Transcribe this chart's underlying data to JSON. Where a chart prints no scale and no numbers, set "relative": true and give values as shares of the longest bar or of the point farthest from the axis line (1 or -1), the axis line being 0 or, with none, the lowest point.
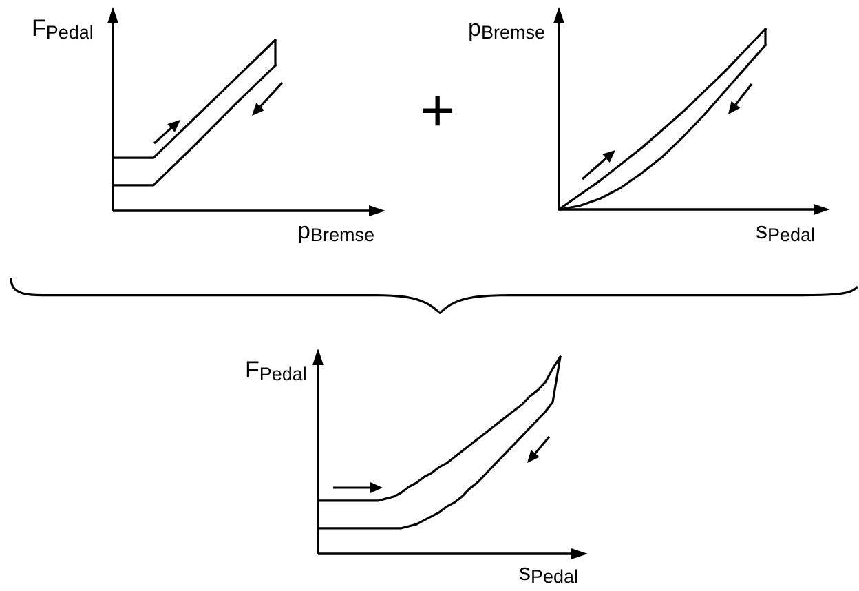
{
  "chart_data": [
    {
      "type": "line",
      "xlabel": "p$_{Bremse}$",
      "ylabel": "F$_{Pedal}$",
      "relative": true,
      "categories": [
        null,
        null,
        null,
        null,
        null
      ],
      "series": [
        {
          "type": "line",
          "color": "#000000",
          "values": [
            0.31,
            0.31,
            0.54,
            0.77,
            1
          ]
        },
        {
          "type": "line",
          "color": "#000000",
          "values": [
            0.15,
            0.15,
            0.38,
            0.62,
            0.85
          ]
        }
      ]
    },
    {
      "type": "other",
      "annotations": [
        "+"
      ]
    },
    {
      "type": "line",
      "xlabel": "s$_{Pedal}$",
      "ylabel": "p$_{Bremse}$",
      "relative": true,
      "categories": [
        null,
        null,
        null,
        null,
        null,
        null,
        null,
        null,
        null,
        null,
        null
      ],
      "series": [
        {
          "type": "line",
          "color": "#000000",
          "values": [
            0,
            0.08,
            0.16,
            0.25,
            0.34,
            0.44,
            0.54,
            0.65,
            0.76,
            0.88,
            1
          ]
        },
        {
          "type": "line",
          "color": "#000000",
          "values": [
            0,
            0.02,
            0.06,
            0.12,
            0.2,
            0.29,
            0.4,
            0.52,
            0.65,
            0.78,
            0.91
          ]
        }
      ]
    },
    {
      "type": "line",
      "xlabel": "s$_{Pedal}$",
      "ylabel": "F$_{Pedal}$",
      "relative": true,
      "categories": [
        null,
        null,
        null,
        null,
        null,
        null,
        null,
        null,
        null,
        null,
        null,
        null,
        null,
        null,
        null,
        null,
        null,
        null,
        null,
        null,
        null,
        null,
        null,
        null,
        null,
        null,
        null,
        null,
        null,
        null,
        null,
        null,
        null
      ],
      "series": [
        {
          "type": "line",
          "color": "#000000",
          "values": [
            0.27,
            0.27,
            0.27,
            0.27,
            0.27,
            0.27,
            0.27,
            0.27,
            0.27,
            0.28,
            0.29,
            0.31,
            0.34,
            0.36,
            0.39,
            0.41,
            0.44,
            0.46,
            0.49,
            0.52,
            0.55,
            0.58,
            0.61,
            0.64,
            0.67,
            0.7,
            0.73,
            0.76,
            0.8,
            0.83,
            0.87,
            0.94,
            1
          ]
        },
        {
          "type": "line",
          "color": "#000000",
          "values": [
            0.13,
            0.13,
            0.13,
            0.13,
            0.13,
            0.13,
            0.13,
            0.13,
            0.13,
            0.13,
            0.13,
            0.13,
            0.14,
            0.15,
            0.17,
            0.19,
            0.21,
            0.24,
            0.26,
            0.29,
            0.33,
            0.36,
            0.4,
            0.44,
            0.48,
            0.52,
            0.56,
            0.6,
            0.64,
            0.68,
            0.72,
            0.77,
            1
          ]
        }
      ]
    }
  ]
}
